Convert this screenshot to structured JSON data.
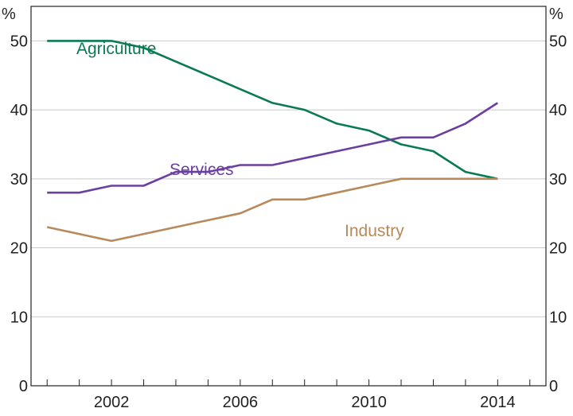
{
  "chart_data": {
    "type": "line",
    "y_unit_left": "%",
    "y_unit_right": "%",
    "ylim": [
      0,
      55
    ],
    "yticks": [
      0,
      10,
      20,
      30,
      40,
      50
    ],
    "xlim": [
      1999.5,
      2015.5
    ],
    "xticks_labeled": [
      2002,
      2006,
      2010,
      2014
    ],
    "xticks_minor": [
      2000,
      2001,
      2002,
      2003,
      2004,
      2005,
      2006,
      2007,
      2008,
      2009,
      2010,
      2011,
      2012,
      2013,
      2014,
      2015
    ],
    "grid": true,
    "legend": "inline labels",
    "series": [
      {
        "name": "Agriculture",
        "color": "#0a7a55",
        "x": [
          2000,
          2001,
          2002,
          2003,
          2004,
          2005,
          2006,
          2007,
          2008,
          2009,
          2010,
          2011,
          2012,
          2013,
          2014
        ],
        "values": [
          50,
          50,
          50,
          49,
          47,
          45,
          43,
          41,
          40,
          38,
          37,
          35,
          34,
          31,
          30
        ]
      },
      {
        "name": "Services",
        "color": "#6b3fa0",
        "x": [
          2000,
          2001,
          2002,
          2003,
          2004,
          2005,
          2006,
          2007,
          2008,
          2009,
          2010,
          2011,
          2012,
          2013,
          2014
        ],
        "values": [
          28,
          28,
          29,
          29,
          31,
          31,
          32,
          32,
          33,
          34,
          35,
          36,
          36,
          38,
          41
        ]
      },
      {
        "name": "Industry",
        "color": "#b8895a",
        "x": [
          2000,
          2002,
          2004,
          2006,
          2007,
          2008,
          2009,
          2010,
          2011,
          2012,
          2013,
          2014
        ],
        "values": [
          23,
          21,
          23,
          25,
          27,
          27,
          28,
          29,
          30,
          30,
          30,
          30
        ]
      }
    ]
  }
}
